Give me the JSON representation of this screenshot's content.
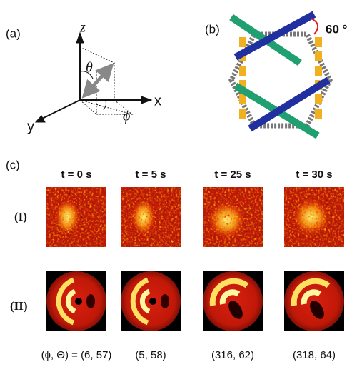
{
  "panel_a": {
    "label": "(a)",
    "axis_z": "z",
    "axis_x": "x",
    "axis_y": "y",
    "theta": "θ",
    "phi": "ϕ"
  },
  "panel_b": {
    "label": "(b)",
    "angle": "60 °"
  },
  "panel_c": {
    "label": "(c)",
    "columns": [
      "t = 0 s",
      "t = 5 s",
      "t = 25 s",
      "t = 30 s"
    ],
    "rows": [
      "(I)",
      "(II)"
    ],
    "angles": [
      "(ϕ, Θ) = (6, 57)",
      "(5, 58)",
      "(316, 62)",
      "(318, 64)"
    ]
  }
}
